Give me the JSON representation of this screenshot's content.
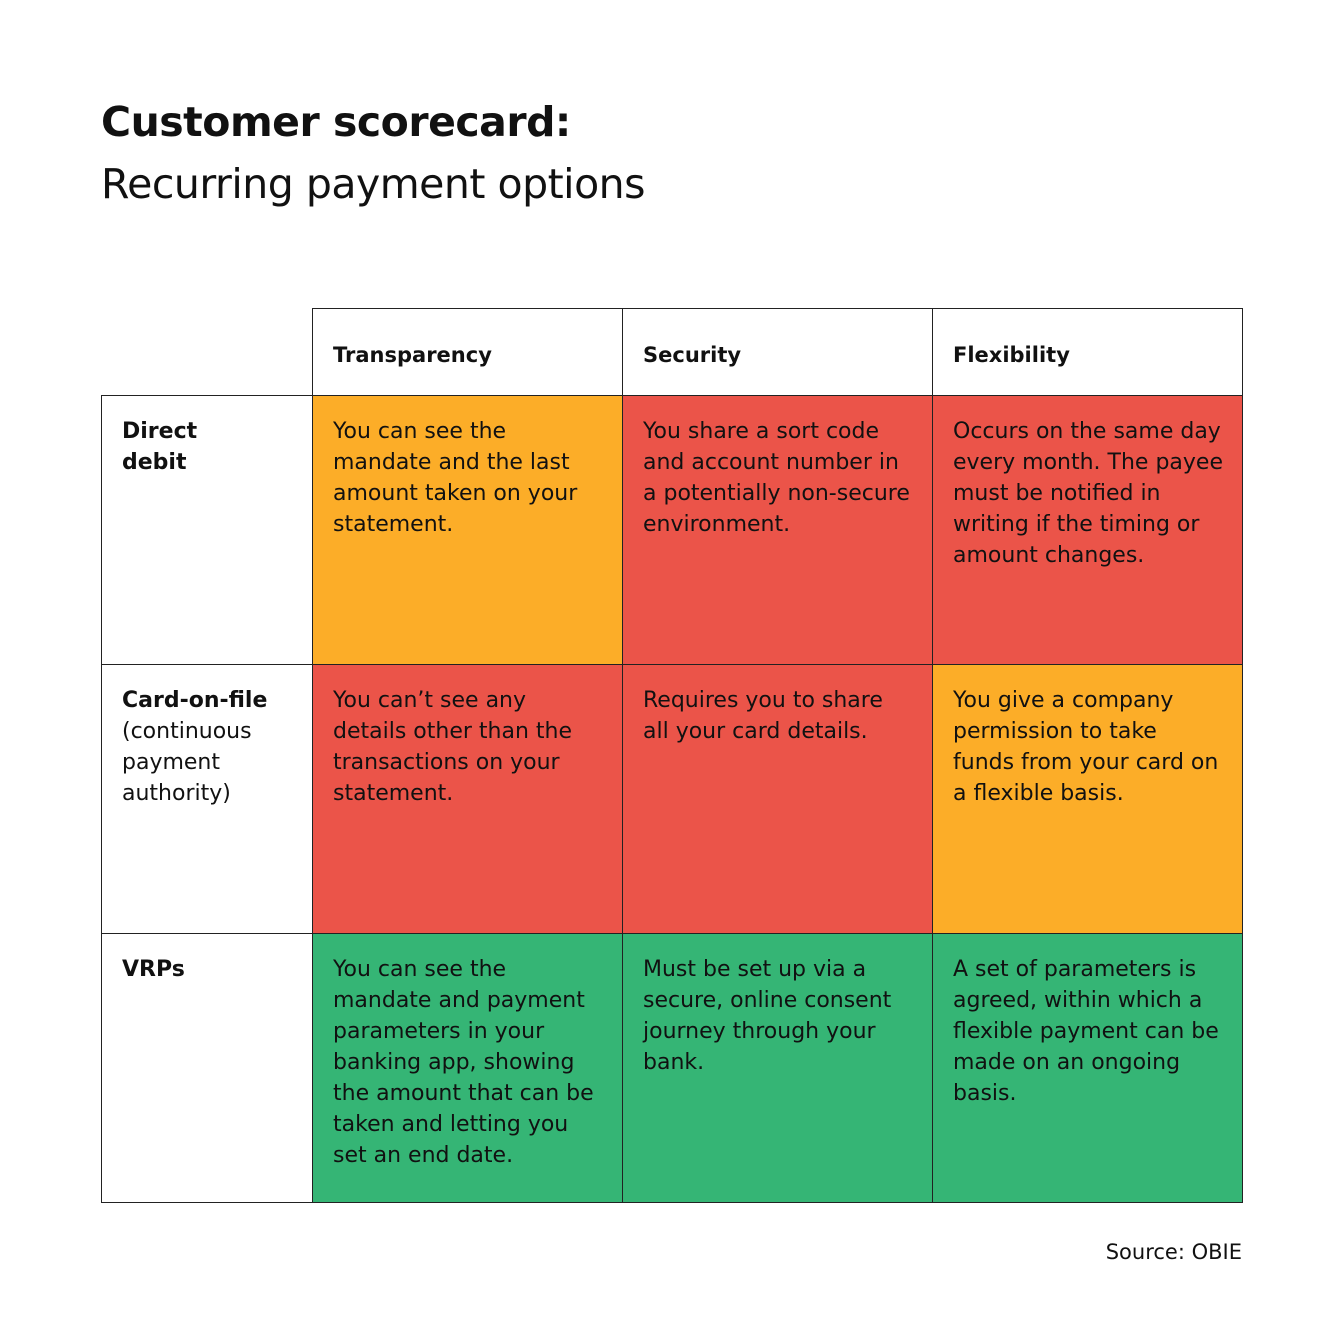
{
  "header": {
    "title": "Customer scorecard:",
    "subtitle": "Recurring payment options"
  },
  "table": {
    "columns": [
      "Transparency",
      "Security",
      "Flexibility"
    ],
    "rows": [
      {
        "label": "Direct debit",
        "cells": [
          {
            "text": "You can see the mandate and the last amount taken on your statement.",
            "color": "#fcad28"
          },
          {
            "text": "You share a sort code and account number in a potentially non-secure environment.",
            "color": "#eb5449"
          },
          {
            "text": "Occurs on the same day every month. The payee must be notified in writing if the timing or amount changes.",
            "color": "#eb5449"
          }
        ]
      },
      {
        "label": "Card-on-file",
        "sublabel": "(continuous payment authority)",
        "cells": [
          {
            "text": "You can’t see any details other than the transactions on your statement.",
            "color": "#eb5449"
          },
          {
            "text": "Requires you to share all your card details.",
            "color": "#eb5449"
          },
          {
            "text": "You give a company permission to take funds from your card on a flexible basis.",
            "color": "#fcad28"
          }
        ]
      },
      {
        "label": "VRPs",
        "cells": [
          {
            "text": "You can see the mandate and payment parameters in your banking app, showing the amount that can be taken and letting you set an end date.",
            "color": "#35b575"
          },
          {
            "text": "Must be set up via a secure, online consent journey through your bank.",
            "color": "#35b575"
          },
          {
            "text": "A set of parameters is agreed, within which a flexible payment can be made on an ongoing basis.",
            "color": "#35b575"
          }
        ]
      }
    ]
  },
  "footer": {
    "source": "Source: OBIE"
  }
}
